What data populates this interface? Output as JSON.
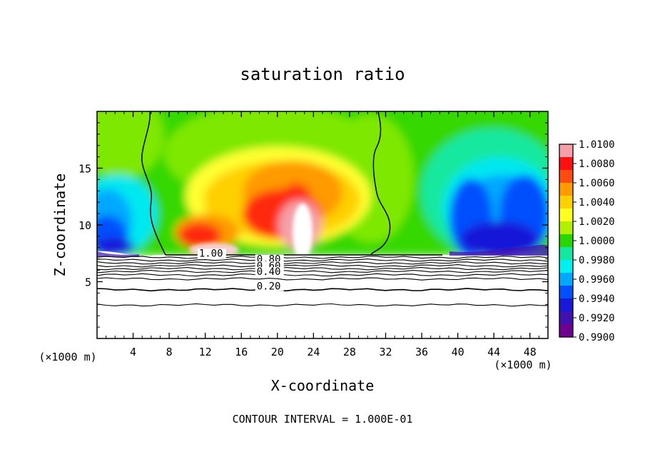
{
  "chart_data": {
    "type": "heatmap",
    "title": "saturation ratio",
    "xlabel": "X-coordinate",
    "ylabel": "Z-coordinate",
    "x_unit_left": "(×1000 m)",
    "x_unit_right": "(×1000 m)",
    "xlim": [
      0,
      50
    ],
    "ylim": [
      0,
      20
    ],
    "x_ticks": [
      4,
      8,
      12,
      16,
      20,
      24,
      28,
      32,
      36,
      40,
      44,
      48
    ],
    "y_ticks": [
      5,
      10,
      15
    ],
    "footer": "CONTOUR INTERVAL = 1.000E-01",
    "colorbar": {
      "min": 0.99,
      "max": 1.01,
      "ticks": [
        "1.0100",
        "1.0080",
        "1.0060",
        "1.0040",
        "1.0020",
        "1.0000",
        "0.9980",
        "0.9960",
        "0.9940",
        "0.9920",
        "0.9900"
      ],
      "colors": [
        "#f5a0a8",
        "#ff1010",
        "#ff4a10",
        "#ff9a00",
        "#ffd000",
        "#ffff20",
        "#b0f000",
        "#2ad600",
        "#14e8a0",
        "#00f0f0",
        "#00a8ff",
        "#0050ff",
        "#1818d8",
        "#4010b0",
        "#700090"
      ]
    },
    "contour_labels": [
      {
        "text": "1.00",
        "x": 11.3,
        "y": 7.2
      },
      {
        "text": "0.80",
        "x": 17.7,
        "y": 6.7
      },
      {
        "text": "0.60",
        "x": 17.7,
        "y": 6.1
      },
      {
        "text": "0.40",
        "x": 17.7,
        "y": 5.6
      },
      {
        "text": "0.20",
        "x": 17.7,
        "y": 4.3
      }
    ],
    "contour_levels_z": [
      7.15,
      6.9,
      6.65,
      6.4,
      6.15,
      5.9,
      5.6,
      5.25,
      4.3,
      2.95
    ]
  }
}
